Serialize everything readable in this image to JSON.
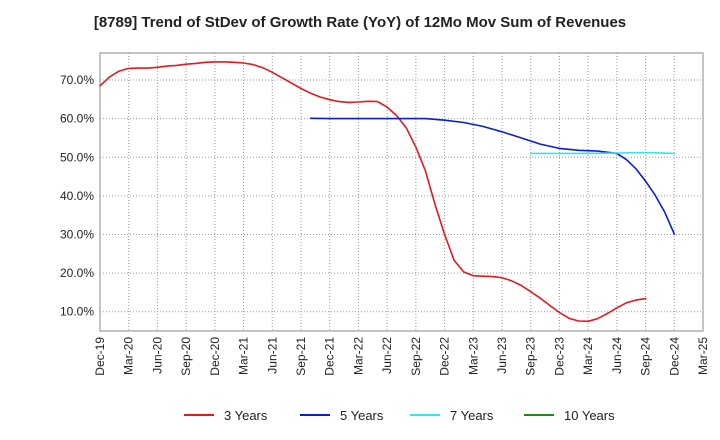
{
  "chart_data": {
    "type": "line",
    "title": "[8789]  Trend of StDev of Growth Rate (YoY) of 12Mo Mov Sum of Revenues",
    "xlabel": "",
    "ylabel": "",
    "ylim": [
      5,
      77
    ],
    "yticks": [
      10,
      20,
      30,
      40,
      50,
      60,
      70
    ],
    "ytick_labels": [
      "10.0%",
      "20.0%",
      "30.0%",
      "40.0%",
      "50.0%",
      "60.0%",
      "70.0%"
    ],
    "grid": true,
    "legend": "bottom",
    "x_labels": [
      "Dec-19",
      "Mar-20",
      "Jun-20",
      "Sep-20",
      "Dec-20",
      "Mar-21",
      "Jun-21",
      "Sep-21",
      "Dec-21",
      "Mar-22",
      "Jun-22",
      "Sep-22",
      "Dec-22",
      "Mar-23",
      "Jun-23",
      "Sep-23",
      "Dec-23",
      "Mar-24",
      "Jun-24",
      "Sep-24",
      "Dec-24",
      "Mar-25"
    ],
    "x_start": "Dec-19",
    "x_unit": "months",
    "series": [
      {
        "name": "3 Years",
        "color": "#e31a1c",
        "points": [
          [
            0,
            68.5
          ],
          [
            1,
            70.8
          ],
          [
            2,
            72.3
          ],
          [
            3,
            73.0
          ],
          [
            4,
            73.1
          ],
          [
            5,
            73.1
          ],
          [
            6,
            73.3
          ],
          [
            7,
            73.6
          ],
          [
            8,
            73.8
          ],
          [
            9,
            74.1
          ],
          [
            10,
            74.3
          ],
          [
            11,
            74.6
          ],
          [
            12,
            74.7
          ],
          [
            13,
            74.7
          ],
          [
            14,
            74.6
          ],
          [
            15,
            74.4
          ],
          [
            16,
            74.0
          ],
          [
            17,
            73.2
          ],
          [
            18,
            72.0
          ],
          [
            19,
            70.6
          ],
          [
            20,
            69.2
          ],
          [
            21,
            67.8
          ],
          [
            22,
            66.6
          ],
          [
            23,
            65.6
          ],
          [
            24,
            64.9
          ],
          [
            25,
            64.4
          ],
          [
            26,
            64.2
          ],
          [
            27,
            64.3
          ],
          [
            28,
            64.5
          ],
          [
            29,
            64.4
          ],
          [
            30,
            63.0
          ],
          [
            31,
            60.8
          ],
          [
            32,
            57.6
          ],
          [
            33,
            52.6
          ],
          [
            34,
            46.5
          ],
          [
            35,
            37.8
          ],
          [
            36,
            30.0
          ],
          [
            37,
            23.3
          ],
          [
            38,
            20.3
          ],
          [
            39,
            19.3
          ],
          [
            40,
            19.2
          ],
          [
            41,
            19.1
          ],
          [
            42,
            18.8
          ],
          [
            43,
            18.0
          ],
          [
            44,
            16.8
          ],
          [
            45,
            15.2
          ],
          [
            46,
            13.5
          ],
          [
            47,
            11.6
          ],
          [
            48,
            9.8
          ],
          [
            49,
            8.3
          ],
          [
            50,
            7.6
          ],
          [
            51,
            7.5
          ],
          [
            52,
            8.2
          ],
          [
            53,
            9.5
          ],
          [
            54,
            11.0
          ],
          [
            55,
            12.3
          ],
          [
            56,
            13.0
          ],
          [
            57,
            13.4
          ]
        ]
      },
      {
        "name": "5 Years",
        "color": "#0b1fd1",
        "points": [
          [
            22,
            60.1
          ],
          [
            24,
            60.0
          ],
          [
            26,
            60.0
          ],
          [
            28,
            60.0
          ],
          [
            30,
            60.0
          ],
          [
            32,
            60.0
          ],
          [
            34,
            60.0
          ],
          [
            36,
            59.6
          ],
          [
            38,
            59.0
          ],
          [
            40,
            58.0
          ],
          [
            42,
            56.6
          ],
          [
            44,
            55.0
          ],
          [
            46,
            53.4
          ],
          [
            48,
            52.3
          ],
          [
            50,
            51.8
          ],
          [
            52,
            51.6
          ],
          [
            54,
            51.0
          ],
          [
            55,
            49.4
          ],
          [
            56,
            47.0
          ],
          [
            57,
            43.8
          ],
          [
            58,
            40.2
          ],
          [
            59,
            35.8
          ],
          [
            60,
            30.1
          ]
        ]
      },
      {
        "name": "7 Years",
        "color": "#33e6f0",
        "points": [
          [
            45,
            51.0
          ],
          [
            48,
            51.0
          ],
          [
            51,
            51.0
          ],
          [
            54,
            51.1
          ],
          [
            57,
            51.2
          ],
          [
            60,
            51.0
          ]
        ]
      },
      {
        "name": "10 Years",
        "color": "#1e8a1e",
        "points": []
      }
    ]
  }
}
